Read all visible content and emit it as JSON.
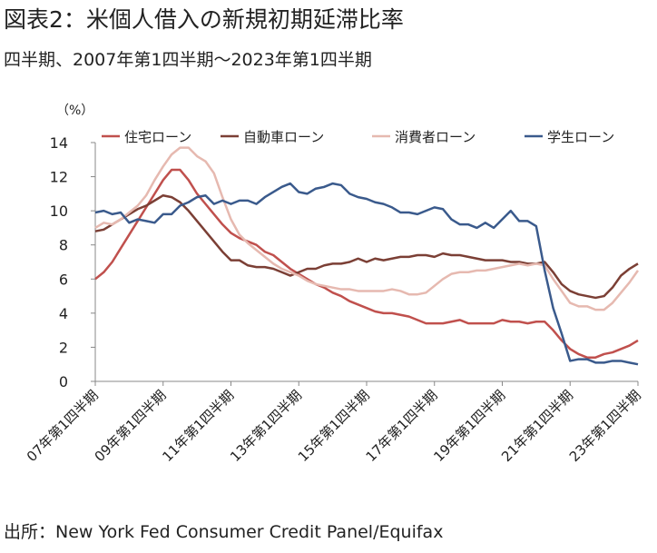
{
  "chart_data": {
    "type": "line",
    "title": "図表2：米個人借入の新規初期延滞比率",
    "subtitle": "四半期、2007年第1四半期～2023年第1四半期",
    "source": "出所：New York Fed Consumer Credit Panel/Equifax",
    "y_label": "（%）",
    "categories": [
      "07年第1四半期",
      null,
      null,
      null,
      null,
      null,
      null,
      null,
      "09年第1四半期",
      null,
      null,
      null,
      null,
      null,
      null,
      null,
      "11年第1四半期",
      null,
      null,
      null,
      null,
      null,
      null,
      null,
      "13年第1四半期",
      null,
      null,
      null,
      null,
      null,
      null,
      null,
      "15年第1四半期",
      null,
      null,
      null,
      null,
      null,
      null,
      null,
      "17年第1四半期",
      null,
      null,
      null,
      null,
      null,
      null,
      null,
      "19年第1四半期",
      null,
      null,
      null,
      null,
      null,
      null,
      null,
      "21年第1四半期",
      null,
      null,
      null,
      null,
      null,
      null,
      null,
      "23年第1四半期"
    ],
    "ylim": [
      0,
      14
    ],
    "yticks": [
      0,
      2,
      4,
      6,
      8,
      10,
      12,
      14
    ],
    "series": [
      {
        "name": "住宅ローン",
        "color": "#c0504d",
        "values": [
          6.0,
          6.4,
          7.0,
          7.8,
          8.6,
          9.4,
          10.2,
          11.0,
          11.8,
          12.4,
          12.4,
          11.8,
          11.0,
          10.4,
          9.8,
          9.2,
          8.7,
          8.4,
          8.2,
          8.0,
          7.6,
          7.4,
          7.0,
          6.6,
          6.3,
          6.0,
          5.7,
          5.5,
          5.2,
          5.0,
          4.7,
          4.5,
          4.3,
          4.1,
          4.0,
          4.0,
          3.9,
          3.8,
          3.6,
          3.4,
          3.4,
          3.4,
          3.5,
          3.6,
          3.4,
          3.4,
          3.4,
          3.4,
          3.6,
          3.5,
          3.5,
          3.4,
          3.5,
          3.5,
          3.0,
          2.4,
          1.9,
          1.6,
          1.4,
          1.4,
          1.6,
          1.7,
          1.9,
          2.1,
          2.4
        ]
      },
      {
        "name": "自動車ローン",
        "color": "#7b3f35",
        "values": [
          8.8,
          8.9,
          9.2,
          9.5,
          9.8,
          10.1,
          10.3,
          10.6,
          10.9,
          10.8,
          10.5,
          10.0,
          9.4,
          8.8,
          8.2,
          7.6,
          7.1,
          7.1,
          6.8,
          6.7,
          6.7,
          6.6,
          6.4,
          6.2,
          6.4,
          6.6,
          6.6,
          6.8,
          6.9,
          6.9,
          7.0,
          7.2,
          7.0,
          7.2,
          7.1,
          7.2,
          7.3,
          7.3,
          7.4,
          7.4,
          7.3,
          7.5,
          7.4,
          7.4,
          7.3,
          7.2,
          7.1,
          7.1,
          7.1,
          7.0,
          7.0,
          6.9,
          6.9,
          7.0,
          6.4,
          5.7,
          5.3,
          5.1,
          5.0,
          4.9,
          5.0,
          5.5,
          6.2,
          6.6,
          6.9
        ]
      },
      {
        "name": "消費者ローン",
        "color": "#e6b9b0",
        "values": [
          9.0,
          9.3,
          9.2,
          9.5,
          9.9,
          10.3,
          10.9,
          11.8,
          12.6,
          13.3,
          13.7,
          13.7,
          13.2,
          12.9,
          12.2,
          10.8,
          9.5,
          8.6,
          8.1,
          7.7,
          7.3,
          6.9,
          6.6,
          6.4,
          6.2,
          5.9,
          5.7,
          5.6,
          5.5,
          5.4,
          5.4,
          5.3,
          5.3,
          5.3,
          5.3,
          5.4,
          5.3,
          5.1,
          5.1,
          5.2,
          5.6,
          6.0,
          6.3,
          6.4,
          6.4,
          6.5,
          6.5,
          6.6,
          6.7,
          6.8,
          6.9,
          6.8,
          6.9,
          6.8,
          6.0,
          5.3,
          4.6,
          4.4,
          4.4,
          4.2,
          4.2,
          4.6,
          5.2,
          5.8,
          6.5
        ]
      },
      {
        "name": "学生ローン",
        "color": "#3a5a8c",
        "values": [
          9.9,
          10.0,
          9.8,
          9.9,
          9.3,
          9.5,
          9.4,
          9.3,
          9.8,
          9.8,
          10.3,
          10.5,
          10.8,
          10.9,
          10.4,
          10.6,
          10.4,
          10.6,
          10.6,
          10.4,
          10.8,
          11.1,
          11.4,
          11.6,
          11.1,
          11.0,
          11.3,
          11.4,
          11.6,
          11.5,
          11.0,
          10.8,
          10.7,
          10.5,
          10.4,
          10.2,
          9.9,
          9.9,
          9.8,
          10.0,
          10.2,
          10.1,
          9.5,
          9.2,
          9.2,
          9.0,
          9.3,
          9.0,
          9.5,
          10.0,
          9.4,
          9.4,
          9.1,
          6.5,
          4.3,
          2.8,
          1.2,
          1.3,
          1.3,
          1.1,
          1.1,
          1.2,
          1.2,
          1.1,
          1.0
        ]
      }
    ]
  }
}
